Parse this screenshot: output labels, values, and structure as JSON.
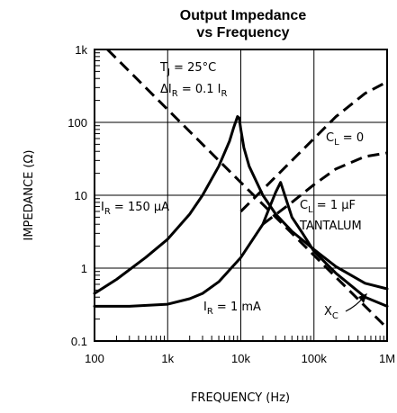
{
  "chart_data": {
    "type": "line",
    "title_line1": "Output Impedance",
    "title_line2": "vs Frequency",
    "xlabel": "FREQUENCY (Hz)",
    "ylabel": "IMPEDANCE (Ω)",
    "x_scale": "log",
    "y_scale": "log",
    "xlim": [
      100,
      1000000
    ],
    "ylim": [
      0.1,
      1000
    ],
    "x_tick_values": [
      100,
      1000,
      10000,
      100000,
      1000000
    ],
    "x_tick_labels": [
      "100",
      "1k",
      "10k",
      "100k",
      "1M"
    ],
    "y_tick_values": [
      0.1,
      1,
      10,
      100,
      1000
    ],
    "y_tick_labels": [
      "0.1",
      "1",
      "10",
      "100",
      "1k"
    ],
    "grid": true,
    "series": [
      {
        "name": "IR = 150 µA",
        "style": "solid",
        "points": [
          [
            100,
            0.45
          ],
          [
            200,
            0.7
          ],
          [
            500,
            1.4
          ],
          [
            1000,
            2.5
          ],
          [
            2000,
            5.5
          ],
          [
            3000,
            10
          ],
          [
            5000,
            25
          ],
          [
            7000,
            55
          ],
          [
            8000,
            85
          ],
          [
            9000,
            120
          ],
          [
            9500,
            115
          ],
          [
            10000,
            80
          ],
          [
            11000,
            45
          ],
          [
            13000,
            25
          ],
          [
            20000,
            10
          ],
          [
            30000,
            5.5
          ],
          [
            50000,
            3.2
          ],
          [
            100000,
            1.8
          ],
          [
            200000,
            1.05
          ],
          [
            500000,
            0.62
          ],
          [
            1000000,
            0.52
          ]
        ]
      },
      {
        "name": "IR = 1 mA",
        "style": "solid",
        "points": [
          [
            100,
            0.3
          ],
          [
            300,
            0.3
          ],
          [
            1000,
            0.32
          ],
          [
            2000,
            0.38
          ],
          [
            3000,
            0.45
          ],
          [
            5000,
            0.65
          ],
          [
            10000,
            1.4
          ],
          [
            20000,
            4
          ],
          [
            25000,
            7
          ],
          [
            30000,
            11
          ],
          [
            35000,
            15
          ],
          [
            40000,
            10
          ],
          [
            50000,
            5
          ],
          [
            70000,
            3
          ],
          [
            100000,
            1.7
          ],
          [
            200000,
            0.85
          ],
          [
            500000,
            0.4
          ],
          [
            1000000,
            0.3
          ]
        ]
      },
      {
        "name": "XC",
        "style": "dashed",
        "points": [
          [
            150,
            1000
          ],
          [
            1000000,
            0.15
          ]
        ]
      },
      {
        "name": "CL = 0",
        "style": "dashed",
        "points": [
          [
            10000,
            6
          ],
          [
            20000,
            12
          ],
          [
            50000,
            30
          ],
          [
            100000,
            60
          ],
          [
            200000,
            120
          ],
          [
            500000,
            250
          ],
          [
            1000000,
            360
          ]
        ]
      },
      {
        "name": "CL = 1 µF TANTALUM",
        "style": "dashed",
        "points": [
          [
            20000,
            4
          ],
          [
            50000,
            8
          ],
          [
            100000,
            14
          ],
          [
            200000,
            23
          ],
          [
            500000,
            34
          ],
          [
            1000000,
            38
          ]
        ]
      }
    ],
    "annotations": {
      "tj_main": "T",
      "tj_sub": "J",
      "tj_rest": " = 25°C",
      "dir_main": "ΔI",
      "dir_sub": "R",
      "dir_rest1": " = 0.1 I",
      "dir_sub2": "R",
      "cl0_main": "C",
      "cl0_sub": "L",
      "cl0_rest": " = 0",
      "cl1_main": "C",
      "cl1_sub": "L",
      "cl1_rest": " = 1 µF",
      "tantalum": "TANTALUM",
      "ir150_main": "I",
      "ir150_sub": "R",
      "ir150_rest": " = 150 µA",
      "ir1_main": "I",
      "ir1_sub": "R",
      "ir1_rest": " = 1 mA",
      "xc_main": "X",
      "xc_sub": "C"
    }
  }
}
